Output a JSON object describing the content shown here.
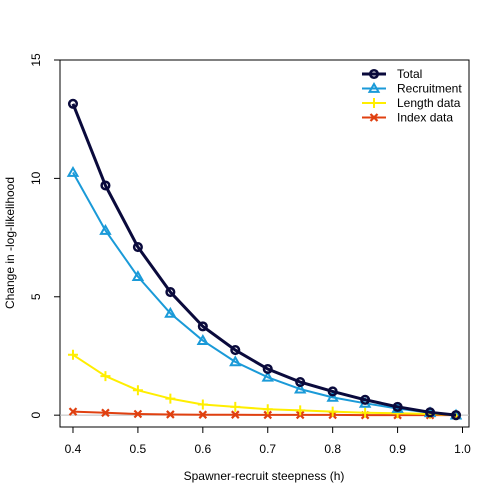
{
  "chart_data": {
    "type": "line",
    "xlabel": "Spawner-recruit steepness (h)",
    "ylabel": "Change in -log-likelihood",
    "xlim": [
      0.38,
      1.01
    ],
    "ylim": [
      -0.5,
      15
    ],
    "xticks": [
      "0.4",
      "0.5",
      "0.6",
      "0.7",
      "0.8",
      "0.9",
      "1.0"
    ],
    "xtick_values": [
      0.4,
      0.5,
      0.6,
      0.7,
      0.8,
      0.9,
      1.0
    ],
    "yticks": [
      "0",
      "5",
      "10",
      "15"
    ],
    "ytick_values": [
      0,
      5,
      10,
      15
    ],
    "grid": false,
    "legend_position": "top-right",
    "zero_reference_line": true,
    "x": [
      0.4,
      0.45,
      0.5,
      0.55,
      0.6,
      0.65,
      0.7,
      0.75,
      0.8,
      0.85,
      0.9,
      0.95,
      0.99
    ],
    "series": [
      {
        "name": "Total",
        "color": "#0a0a3c",
        "marker": "circle",
        "values": [
          13.15,
          9.7,
          7.1,
          5.2,
          3.75,
          2.75,
          1.95,
          1.4,
          1.0,
          0.65,
          0.35,
          0.12,
          0.0
        ]
      },
      {
        "name": "Recruitment",
        "color": "#1a9ad8",
        "marker": "triangle",
        "values": [
          10.25,
          7.8,
          5.85,
          4.3,
          3.15,
          2.25,
          1.6,
          1.1,
          0.75,
          0.5,
          0.28,
          0.1,
          0.0
        ]
      },
      {
        "name": "Length data",
        "color": "#ffee00",
        "marker": "plus",
        "values": [
          2.55,
          1.65,
          1.05,
          0.7,
          0.45,
          0.35,
          0.25,
          0.2,
          0.15,
          0.1,
          0.08,
          0.05,
          0.0
        ]
      },
      {
        "name": "Index data",
        "color": "#e04010",
        "marker": "x",
        "values": [
          0.15,
          0.1,
          0.05,
          0.03,
          0.02,
          0.02,
          0.01,
          0.01,
          0.01,
          0.0,
          0.0,
          0.0,
          0.0
        ]
      }
    ]
  }
}
